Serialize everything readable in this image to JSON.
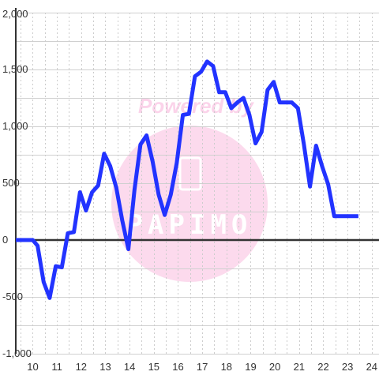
{
  "watermark": {
    "text_top": "Powered by",
    "text_bottom": "PAPIMO",
    "color": "#fbd3ea"
  },
  "colors": {
    "series": "#2233ff",
    "zero_line": "#333333",
    "grid_h": "#d0d0d0",
    "grid_v": "#cccccc",
    "axis": "#333333",
    "background": "#ffffff"
  },
  "chart_data": {
    "type": "line",
    "title": "",
    "xlabel": "",
    "ylabel": "",
    "xlim": [
      9.3,
      24.3
    ],
    "ylim": [
      -1000,
      2000
    ],
    "x_ticks": [
      10,
      11,
      12,
      13,
      14,
      15,
      16,
      17,
      18,
      19,
      20,
      21,
      22,
      23,
      24
    ],
    "y_ticks": [
      -1000,
      -500,
      0,
      500,
      1000,
      1500,
      2000
    ],
    "y_tick_labels": [
      "-1,000",
      "-500",
      "0",
      "500",
      "1,000",
      "1,500",
      "2,000"
    ],
    "grid": {
      "horizontal": "solid",
      "vertical": "dotted"
    },
    "legend": "none",
    "series": [
      {
        "color": "#2233ff",
        "x": [
          9.3,
          9.6,
          9.9,
          10.0,
          10.2,
          10.45,
          10.7,
          10.95,
          11.2,
          11.45,
          11.7,
          11.95,
          12.2,
          12.45,
          12.7,
          12.95,
          13.2,
          13.45,
          13.7,
          13.95,
          14.2,
          14.45,
          14.7,
          14.95,
          15.2,
          15.45,
          15.7,
          15.95,
          16.2,
          16.45,
          16.7,
          16.95,
          17.2,
          17.45,
          17.7,
          17.95,
          18.2,
          18.45,
          18.7,
          18.95,
          19.2,
          19.45,
          19.7,
          19.95,
          20.2,
          20.45,
          20.7,
          20.95,
          21.2,
          21.45,
          21.7,
          21.95,
          22.2,
          22.45,
          22.7,
          22.95,
          23.2,
          23.45
        ],
        "y": [
          0,
          0,
          0,
          0,
          -50,
          -370,
          -510,
          -230,
          -240,
          60,
          70,
          420,
          260,
          420,
          480,
          760,
          650,
          460,
          170,
          -80,
          440,
          840,
          920,
          690,
          400,
          220,
          400,
          680,
          1100,
          1110,
          1440,
          1480,
          1570,
          1530,
          1300,
          1300,
          1160,
          1210,
          1250,
          1100,
          850,
          950,
          1320,
          1390,
          1210,
          1210,
          1210,
          1160,
          840,
          470,
          830,
          650,
          490,
          210,
          210,
          210,
          210,
          210
        ]
      }
    ]
  }
}
